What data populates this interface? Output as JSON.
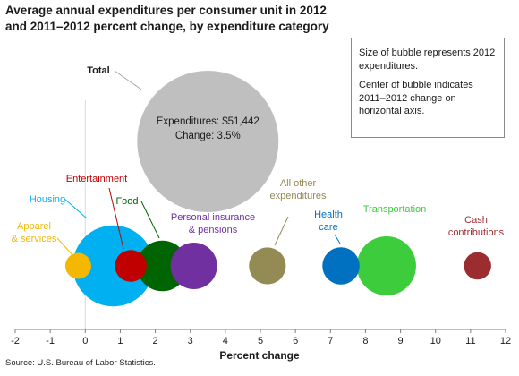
{
  "chart_data": {
    "type": "bubble",
    "title": "Average annual expenditures per consumer unit in 2012 and 2011–2012 percent change, by expenditure category",
    "xlabel": "Percent change",
    "xlim": [
      -2,
      12
    ],
    "x_ticks": [
      "-2",
      "-1",
      "0",
      "1",
      "2",
      "3",
      "4",
      "5",
      "6",
      "7",
      "8",
      "9",
      "10",
      "11",
      "12"
    ],
    "notes": [
      "Size of bubble represents 2012 expenditures.",
      "Center  of bubble indicates 2011–2012 change on horizontal axis."
    ],
    "source": "Source: U.S. Bureau of Labor Statistics.",
    "total": {
      "name": "Total",
      "expenditures_text": "Expenditures: $51,442",
      "change_text": "Change: 3.5%",
      "x": 3.5,
      "expenditure": 51442,
      "color": "#bfbfbf"
    },
    "series": [
      {
        "name": "Housing",
        "label_lines": [
          "Housing"
        ],
        "x": 0.8,
        "expenditure": 16887,
        "color": "#00b0f0"
      },
      {
        "name": "Food",
        "label_lines": [
          "Food"
        ],
        "x": 2.2,
        "expenditure": 6599,
        "color": "#006400"
      },
      {
        "name": "Personal insurance & pensions",
        "label_lines": [
          "Personal insurance",
          "& pensions"
        ],
        "x": 3.1,
        "expenditure": 5591,
        "color": "#7030a0"
      },
      {
        "name": "Entertainment",
        "label_lines": [
          "Entertainment"
        ],
        "x": 1.3,
        "expenditure": 2605,
        "color": "#c00000"
      },
      {
        "name": "Apparel & services",
        "label_lines": [
          "Apparel",
          "& services"
        ],
        "x": -0.2,
        "expenditure": 1736,
        "color": "#f5b800"
      },
      {
        "name": "All other expenditures",
        "label_lines": [
          "All other",
          "expenditures"
        ],
        "x": 5.2,
        "expenditure": 3500,
        "color": "#948a54"
      },
      {
        "name": "Health care",
        "label_lines": [
          "Health",
          "care"
        ],
        "x": 7.3,
        "expenditure": 3556,
        "color": "#0070c0"
      },
      {
        "name": "Transportation",
        "label_lines": [
          "Transportation"
        ],
        "x": 8.6,
        "expenditure": 8998,
        "color": "#3ccc3c"
      },
      {
        "name": "Cash contributions",
        "label_lines": [
          "Cash",
          "contributions"
        ],
        "x": 11.2,
        "expenditure": 1913,
        "color": "#9b2d30"
      }
    ]
  }
}
